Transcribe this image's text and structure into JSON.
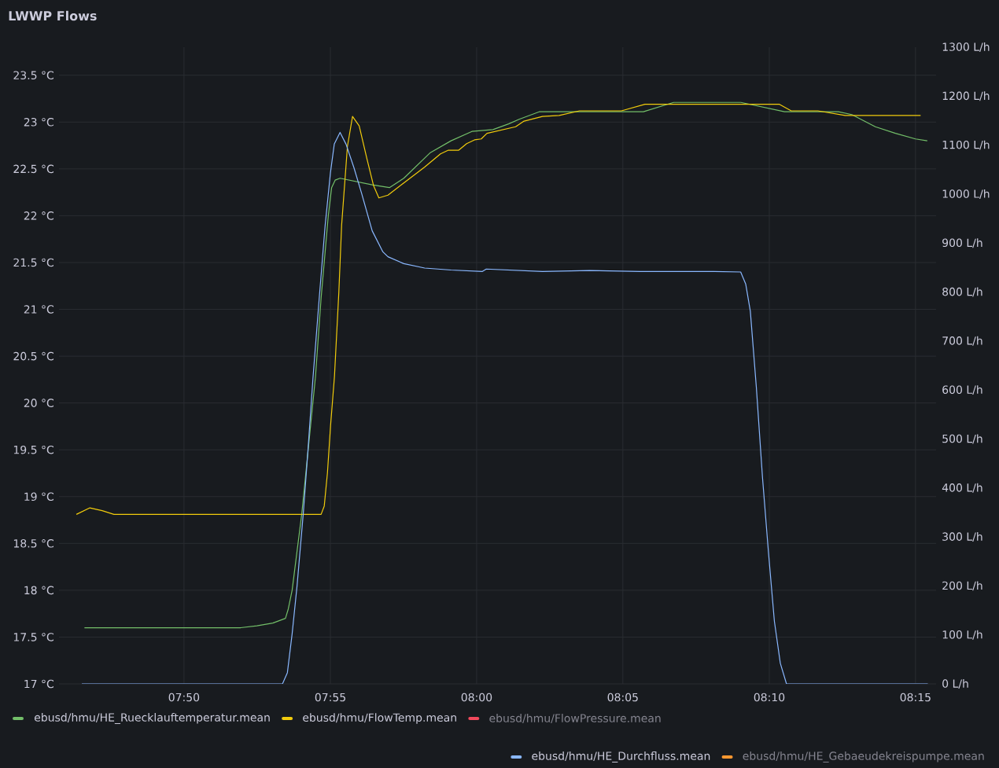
{
  "chart_data": {
    "type": "line",
    "title": "LWWP Flows",
    "xlim": [
      7.7621,
      8.2617
    ],
    "ylim": [
      17,
      23.8
    ],
    "y2lim": [
      0,
      1300
    ],
    "xticks": [
      {
        "value": 7.8333,
        "label": "07:50"
      },
      {
        "value": 7.9167,
        "label": "07:55"
      },
      {
        "value": 8.0,
        "label": "08:00"
      },
      {
        "value": 8.0833,
        "label": "08:05"
      },
      {
        "value": 8.1667,
        "label": "08:10"
      },
      {
        "value": 8.25,
        "label": "08:15"
      }
    ],
    "yticks": [
      {
        "value": 17,
        "label": "17 °C"
      },
      {
        "value": 17.5,
        "label": "17.5 °C"
      },
      {
        "value": 18,
        "label": "18 °C"
      },
      {
        "value": 18.5,
        "label": "18.5 °C"
      },
      {
        "value": 19,
        "label": "19 °C"
      },
      {
        "value": 19.5,
        "label": "19.5 °C"
      },
      {
        "value": 20,
        "label": "20 °C"
      },
      {
        "value": 20.5,
        "label": "20.5 °C"
      },
      {
        "value": 21,
        "label": "21 °C"
      },
      {
        "value": 21.5,
        "label": "21.5 °C"
      },
      {
        "value": 22,
        "label": "22 °C"
      },
      {
        "value": 22.5,
        "label": "22.5 °C"
      },
      {
        "value": 23,
        "label": "23 °C"
      },
      {
        "value": 23.5,
        "label": "23.5 °C"
      }
    ],
    "y2ticks": [
      {
        "value": 0,
        "label": "0 L/h"
      },
      {
        "value": 100,
        "label": "100 L/h"
      },
      {
        "value": 200,
        "label": "200 L/h"
      },
      {
        "value": 300,
        "label": "300 L/h"
      },
      {
        "value": 400,
        "label": "400 L/h"
      },
      {
        "value": 500,
        "label": "500 L/h"
      },
      {
        "value": 600,
        "label": "600 L/h"
      },
      {
        "value": 700,
        "label": "700 L/h"
      },
      {
        "value": 800,
        "label": "800 L/h"
      },
      {
        "value": 900,
        "label": "900 L/h"
      },
      {
        "value": 1000,
        "label": "1000 L/h"
      },
      {
        "value": 1100,
        "label": "1100 L/h"
      },
      {
        "value": 1200,
        "label": "1200 L/h"
      },
      {
        "value": 1300,
        "label": "1300 L/h"
      }
    ],
    "grid": true,
    "legend": "bottom",
    "series": [
      {
        "name": "ebusd/hmu/HE_Ruecklauftemperatur.mean",
        "color": "#73bf69",
        "x": [
          7.7766,
          7.8656,
          7.8748,
          7.8839,
          7.8911,
          7.8927,
          7.8949,
          7.9004,
          7.9082,
          7.9114,
          7.9155,
          7.9174,
          7.9194,
          7.9222,
          7.9405,
          7.9503,
          7.9585,
          7.9734,
          7.9854,
          7.9973,
          8.0093,
          8.0182,
          8.0242,
          8.0356,
          8.095,
          8.1122,
          8.1505,
          8.1754,
          8.206,
          8.2137,
          8.2271,
          8.2386,
          8.25,
          8.2567
        ],
        "values": [
          17.6,
          17.6,
          17.62,
          17.65,
          17.7,
          17.8,
          18.0,
          18.82,
          20.28,
          21.12,
          22.0,
          22.3,
          22.38,
          22.4,
          22.33,
          22.3,
          22.4,
          22.67,
          22.8,
          22.9,
          22.92,
          22.98,
          23.03,
          23.11,
          23.11,
          23.21,
          23.21,
          23.11,
          23.11,
          23.08,
          22.95,
          22.88,
          22.82,
          22.8
        ]
      },
      {
        "name": "ebusd/hmu/FlowTemp.mean",
        "color": "#f2cc0c",
        "x": [
          7.772,
          7.7797,
          7.7867,
          7.7934,
          7.9114,
          7.9132,
          7.915,
          7.9168,
          7.919,
          7.9215,
          7.9231,
          7.9264,
          7.9293,
          7.9331,
          7.9376,
          7.9413,
          7.9443,
          7.9495,
          7.9585,
          7.9704,
          7.9794,
          7.9839,
          7.9898,
          7.9943,
          7.9988,
          8.0026,
          8.0059,
          8.0222,
          8.027,
          8.0375,
          8.047,
          8.0586,
          8.0825,
          8.0959,
          8.1725,
          8.1792,
          8.1944,
          8.2099,
          8.2529
        ],
        "values": [
          18.81,
          18.88,
          18.85,
          18.81,
          18.81,
          18.9,
          19.25,
          19.76,
          20.28,
          21.18,
          21.9,
          22.74,
          23.06,
          22.96,
          22.6,
          22.32,
          22.19,
          22.22,
          22.35,
          22.52,
          22.66,
          22.7,
          22.7,
          22.77,
          22.81,
          22.82,
          22.88,
          22.95,
          23.01,
          23.06,
          23.07,
          23.12,
          23.12,
          23.19,
          23.19,
          23.12,
          23.12,
          23.07,
          23.07
        ]
      },
      {
        "name": "ebusd/hmu/FlowPressure.mean",
        "color": "#f2495c",
        "values": [
          null
        ]
      },
      {
        "name": "ebusd/hmu/HE_Durchfluss.mean",
        "color": "#8ab8ff",
        "axis": "y2",
        "x": [
          7.7751,
          7.8894,
          7.8922,
          7.8949,
          7.8977,
          7.9013,
          7.904,
          7.9068,
          7.9103,
          7.9137,
          7.9167,
          7.9189,
          7.9222,
          7.9256,
          7.9301,
          7.9346,
          7.9405,
          7.9466,
          7.9495,
          7.9585,
          7.9704,
          7.9854,
          8.0033,
          8.0055,
          8.0375,
          8.0643,
          8.0931,
          8.1352,
          8.1504,
          8.1533,
          8.1559,
          8.1593,
          8.1628,
          8.1662,
          8.1696,
          8.173,
          8.1765,
          8.257
        ],
        "values": [
          0,
          0,
          23,
          102,
          200,
          350,
          481,
          626,
          786,
          936,
          1043,
          1102,
          1126,
          1102,
          1054,
          1000,
          925,
          882,
          872,
          858,
          849,
          845,
          842,
          847,
          842,
          844,
          842,
          842,
          841,
          816,
          761,
          607,
          423,
          270,
          128,
          42,
          0,
          0
        ]
      },
      {
        "name": "ebusd/hmu/HE_Gebaeudekreispumpe.mean",
        "color": "#ff9830",
        "axis": "y2",
        "values": [
          null
        ]
      }
    ]
  }
}
